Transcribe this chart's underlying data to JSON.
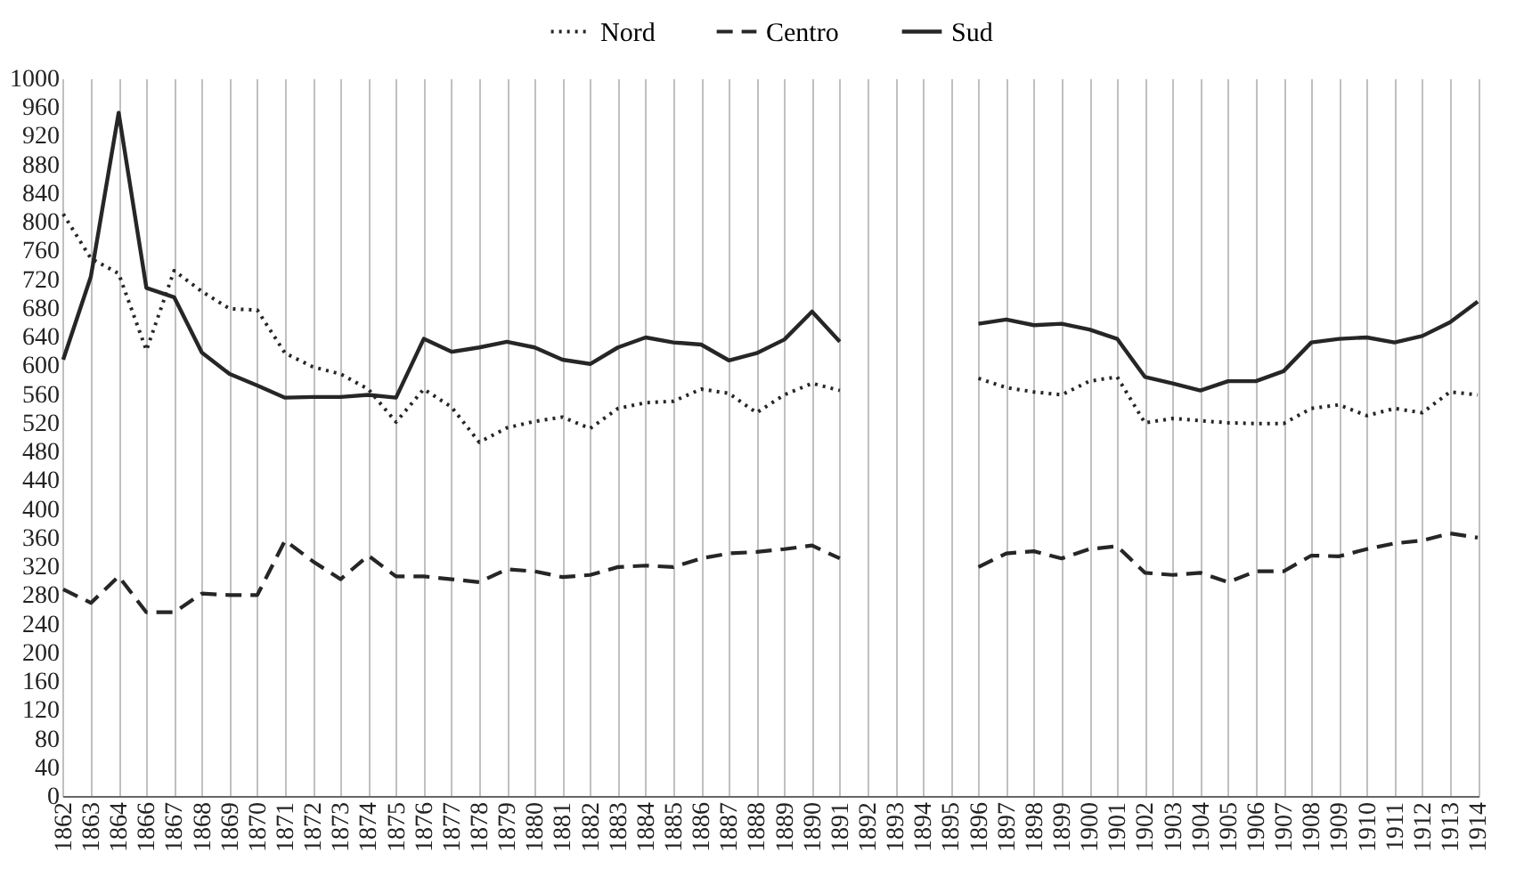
{
  "chart_data": {
    "type": "line",
    "categories": [
      "1862",
      "1863",
      "1864",
      "1866",
      "1867",
      "1868",
      "1869",
      "1870",
      "1871",
      "1872",
      "1873",
      "1874",
      "1875",
      "1876",
      "1877",
      "1878",
      "1879",
      "1880",
      "1881",
      "1882",
      "1883",
      "1884",
      "1885",
      "1886",
      "1887",
      "1888",
      "1889",
      "1890",
      "1891",
      "1892",
      "1893",
      "1894",
      "1895",
      "1896",
      "1897",
      "1898",
      "1899",
      "1900",
      "1901",
      "1902",
      "1903",
      "1904",
      "1905",
      "1906",
      "1907",
      "1908",
      "1909",
      "1910",
      "1911",
      "1912",
      "1913",
      "1914"
    ],
    "series": [
      {
        "name": "Nord",
        "color": "#262626",
        "line_style": "dotted",
        "values": [
          811,
          749,
          728,
          621,
          732,
          703,
          679,
          677,
          617,
          598,
          588,
          567,
          521,
          567,
          542,
          493,
          513,
          522,
          528,
          512,
          540,
          548,
          550,
          567,
          561,
          534,
          559,
          575,
          565,
          null,
          null,
          null,
          null,
          582,
          569,
          563,
          559,
          578,
          584,
          520,
          526,
          523,
          520,
          519,
          519,
          540,
          545,
          530,
          540,
          534,
          563,
          559
        ]
      },
      {
        "name": "Centro",
        "color": "#262626",
        "line_style": "dashed",
        "values": [
          288,
          269,
          306,
          256,
          256,
          282,
          280,
          280,
          356,
          327,
          302,
          335,
          306,
          306,
          302,
          298,
          316,
          313,
          305,
          308,
          319,
          321,
          319,
          331,
          338,
          340,
          344,
          349,
          331,
          null,
          null,
          null,
          null,
          319,
          338,
          341,
          331,
          344,
          348,
          311,
          308,
          311,
          298,
          313,
          313,
          335,
          334,
          344,
          352,
          356,
          366,
          360
        ]
      },
      {
        "name": "Sud",
        "color": "#262626",
        "line_style": "solid",
        "values": [
          608,
          724,
          952,
          708,
          695,
          618,
          588,
          572,
          555,
          556,
          556,
          559,
          555,
          637,
          619,
          625,
          633,
          625,
          608,
          602,
          625,
          639,
          632,
          629,
          607,
          617,
          636,
          675,
          633,
          null,
          null,
          null,
          null,
          658,
          664,
          656,
          658,
          650,
          637,
          584,
          575,
          565,
          578,
          578,
          592,
          632,
          637,
          639,
          632,
          641,
          660,
          689
        ]
      }
    ],
    "ylim": [
      0,
      1000
    ],
    "yticks": [
      0,
      40,
      80,
      120,
      160,
      200,
      240,
      280,
      320,
      360,
      400,
      440,
      480,
      520,
      560,
      600,
      640,
      680,
      720,
      760,
      800,
      840,
      880,
      920,
      960,
      1000
    ],
    "grid": "x",
    "legend": "top"
  }
}
